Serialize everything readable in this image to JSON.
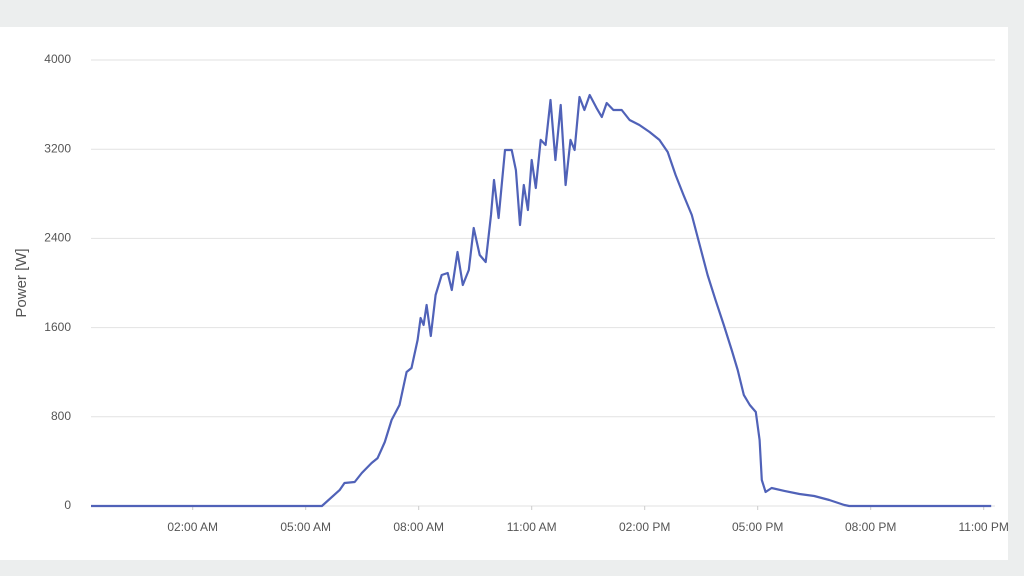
{
  "chart_data": {
    "type": "line",
    "y_label": "Power [W]",
    "x": [
      -0.7,
      5.43,
      5.9,
      6.03,
      6.3,
      6.49,
      6.75,
      6.91,
      7.1,
      7.28,
      7.49,
      7.68,
      7.81,
      7.97,
      8.05,
      8.13,
      8.21,
      8.32,
      8.45,
      8.61,
      8.77,
      8.88,
      9.03,
      9.17,
      9.33,
      9.46,
      9.62,
      9.78,
      9.92,
      10.0,
      10.12,
      10.29,
      10.47,
      10.58,
      10.69,
      10.79,
      10.9,
      11.0,
      11.11,
      11.24,
      11.37,
      11.5,
      11.63,
      11.77,
      11.9,
      12.03,
      12.14,
      12.27,
      12.4,
      12.54,
      12.72,
      12.86,
      12.99,
      13.17,
      13.39,
      13.6,
      13.86,
      14.13,
      14.39,
      14.61,
      14.82,
      15.03,
      15.25,
      15.46,
      15.67,
      15.88,
      16.1,
      16.31,
      16.47,
      16.63,
      16.79,
      16.95,
      17.05,
      17.11,
      17.21,
      17.37,
      17.71,
      18.11,
      18.5,
      18.9,
      19.3,
      19.43,
      23.2
    ],
    "series": [
      {
        "name": "Power",
        "color": "#5062b8",
        "values": [
          0,
          0,
          143,
          206,
          215,
          296,
          386,
          430,
          574,
          771,
          906,
          1202,
          1238,
          1489,
          1686,
          1623,
          1803,
          1525,
          1892,
          2072,
          2090,
          1937,
          2278,
          1982,
          2117,
          2493,
          2251,
          2188,
          2610,
          2924,
          2583,
          3193,
          3193,
          3013,
          2520,
          2879,
          2655,
          3103,
          2852,
          3283,
          3238,
          3641,
          3103,
          3596,
          2879,
          3283,
          3193,
          3668,
          3552,
          3686,
          3570,
          3489,
          3614,
          3552,
          3552,
          3462,
          3417,
          3354,
          3283,
          3175,
          2969,
          2789,
          2610,
          2341,
          2072,
          1848,
          1623,
          1399,
          1220,
          996,
          906,
          843,
          592,
          233,
          126,
          161,
          135,
          108,
          90,
          54,
          9,
          0,
          0
        ]
      }
    ],
    "xlim": [
      -0.7,
      23.3
    ],
    "xticks": [
      {
        "value": 2,
        "label": "02:00 AM"
      },
      {
        "value": 5,
        "label": "05:00 AM"
      },
      {
        "value": 8,
        "label": "08:00 AM"
      },
      {
        "value": 11,
        "label": "11:00 AM"
      },
      {
        "value": 14,
        "label": "02:00 PM"
      },
      {
        "value": 17,
        "label": "05:00 PM"
      },
      {
        "value": 20,
        "label": "08:00 PM"
      },
      {
        "value": 23,
        "label": "11:00 PM"
      }
    ],
    "ylim": [
      0,
      4000
    ],
    "yticks": [
      0,
      800,
      1600,
      2400,
      3200,
      4000
    ],
    "grid": true
  }
}
